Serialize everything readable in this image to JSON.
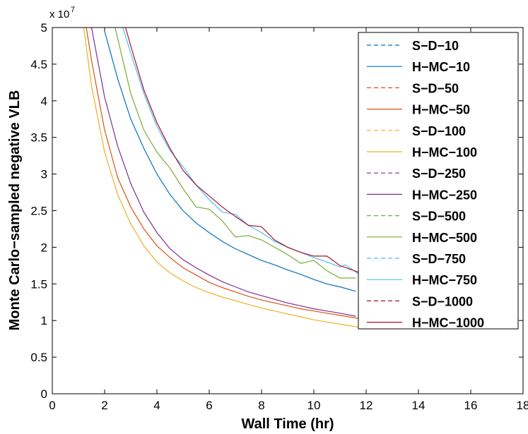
{
  "chart_data": {
    "type": "line",
    "title": "",
    "xlabel": "Wall Time (hr)",
    "ylabel": "Monte Carlo−sampled negative VLB",
    "xlim": [
      0,
      18
    ],
    "ylim": [
      0,
      5
    ],
    "y_scale_label": "x 10",
    "y_scale_exponent": "7",
    "x_ticks": [
      "0",
      "2",
      "4",
      "6",
      "8",
      "10",
      "12",
      "14",
      "16",
      "18"
    ],
    "y_ticks": [
      "0",
      "0.5",
      "1",
      "1.5",
      "2",
      "2.5",
      "3",
      "3.5",
      "4",
      "4.5",
      "5"
    ],
    "legend_position": "top-right",
    "series": [
      {
        "name": "S−D−10",
        "color": "#0072bd",
        "dash": true,
        "x": [],
        "y": []
      },
      {
        "name": "H−MC−10",
        "color": "#0072bd",
        "dash": false,
        "x": [
          2.0,
          2.5,
          3.0,
          3.5,
          4.0,
          4.5,
          5.0,
          5.5,
          6.0,
          6.5,
          7.0,
          7.5,
          8.0,
          8.5,
          9.0,
          9.5,
          10.0,
          10.5,
          11.0,
          11.6
        ],
        "y": [
          4.95,
          4.3,
          3.75,
          3.35,
          3.0,
          2.72,
          2.5,
          2.33,
          2.2,
          2.08,
          1.98,
          1.9,
          1.82,
          1.76,
          1.69,
          1.63,
          1.56,
          1.5,
          1.46,
          1.4
        ]
      },
      {
        "name": "S−D−50",
        "color": "#d95319",
        "dash": true,
        "x": [],
        "y": []
      },
      {
        "name": "H−MC−50",
        "color": "#d95319",
        "dash": false,
        "x": [
          1.3,
          1.5,
          2.0,
          2.5,
          3.0,
          3.5,
          4.0,
          4.5,
          5.0,
          5.5,
          6.0,
          6.5,
          7.0,
          7.5,
          8.0,
          8.5,
          9.0,
          9.5,
          10.0,
          10.5,
          11.0,
          11.7
        ],
        "y": [
          5.0,
          4.55,
          3.6,
          2.95,
          2.55,
          2.25,
          2.02,
          1.86,
          1.72,
          1.62,
          1.52,
          1.45,
          1.39,
          1.33,
          1.28,
          1.24,
          1.2,
          1.16,
          1.13,
          1.1,
          1.07,
          1.03
        ]
      },
      {
        "name": "S−D−100",
        "color": "#edb120",
        "dash": true,
        "x": [],
        "y": []
      },
      {
        "name": "H−MC−100",
        "color": "#edb120",
        "dash": false,
        "x": [
          1.2,
          1.5,
          2.0,
          2.5,
          3.0,
          3.5,
          4.0,
          4.5,
          5.0,
          5.5,
          6.0,
          6.5,
          7.0,
          7.5,
          8.0,
          8.5,
          9.0,
          9.5,
          10.0,
          10.5,
          11.0,
          11.7
        ],
        "y": [
          5.0,
          4.2,
          3.3,
          2.72,
          2.32,
          2.02,
          1.8,
          1.65,
          1.54,
          1.45,
          1.38,
          1.32,
          1.27,
          1.22,
          1.17,
          1.13,
          1.09,
          1.05,
          1.01,
          0.98,
          0.95,
          0.91
        ]
      },
      {
        "name": "S−D−250",
        "color": "#7e2f8e",
        "dash": true,
        "x": [],
        "y": []
      },
      {
        "name": "H−MC−250",
        "color": "#7e2f8e",
        "dash": false,
        "x": [
          1.5,
          2.0,
          2.5,
          3.0,
          3.5,
          4.0,
          4.5,
          5.0,
          5.5,
          6.0,
          6.5,
          7.0,
          7.5,
          8.0,
          8.5,
          9.0,
          9.5,
          10.0,
          10.5,
          11.0,
          11.6
        ],
        "y": [
          5.0,
          4.05,
          3.38,
          2.87,
          2.48,
          2.2,
          1.98,
          1.83,
          1.72,
          1.62,
          1.53,
          1.46,
          1.39,
          1.34,
          1.29,
          1.24,
          1.2,
          1.16,
          1.13,
          1.1,
          1.06
        ]
      },
      {
        "name": "S−D−500",
        "color": "#77ac30",
        "dash": true,
        "x": [],
        "y": []
      },
      {
        "name": "H−MC−500",
        "color": "#77ac30",
        "dash": false,
        "x": [
          2.4,
          2.7,
          3.0,
          3.5,
          4.0,
          4.5,
          5.0,
          5.5,
          6.0,
          6.5,
          7.0,
          7.5,
          8.0,
          8.5,
          9.0,
          9.5,
          10.0,
          10.5,
          11.0,
          11.6
        ],
        "y": [
          5.0,
          4.55,
          4.1,
          3.6,
          3.3,
          3.08,
          2.8,
          2.55,
          2.52,
          2.36,
          2.14,
          2.16,
          2.1,
          2.0,
          1.9,
          1.78,
          1.82,
          1.68,
          1.58,
          1.58
        ]
      },
      {
        "name": "S−D−750",
        "color": "#4dbeee",
        "dash": true,
        "x": [],
        "y": []
      },
      {
        "name": "H−MC−750",
        "color": "#4dbeee",
        "dash": false,
        "x": [
          2.7,
          3.0,
          3.5,
          4.0,
          4.5,
          5.0,
          5.5,
          6.0,
          6.5,
          7.0,
          7.5,
          8.0,
          8.5,
          9.0,
          9.5,
          10.0,
          10.5,
          11.0,
          11.2,
          11.7
        ],
        "y": [
          5.0,
          4.65,
          4.1,
          3.65,
          3.32,
          3.1,
          2.85,
          2.65,
          2.48,
          2.45,
          2.3,
          2.2,
          2.08,
          2.0,
          1.93,
          1.86,
          1.8,
          1.73,
          1.76,
          1.64
        ]
      },
      {
        "name": "S−D−1000",
        "color": "#a2142f",
        "dash": true,
        "x": [],
        "y": []
      },
      {
        "name": "H−MC−1000",
        "color": "#a2142f",
        "dash": false,
        "x": [
          2.8,
          3.0,
          3.5,
          4.0,
          4.5,
          5.0,
          5.5,
          6.0,
          6.5,
          7.0,
          7.5,
          8.0,
          8.5,
          9.0,
          9.5,
          10.0,
          10.5,
          11.0,
          11.7
        ],
        "y": [
          5.0,
          4.75,
          4.15,
          3.7,
          3.35,
          3.05,
          2.85,
          2.7,
          2.55,
          2.42,
          2.3,
          2.28,
          2.1,
          2.0,
          1.93,
          1.88,
          1.88,
          1.75,
          1.66
        ]
      }
    ]
  }
}
